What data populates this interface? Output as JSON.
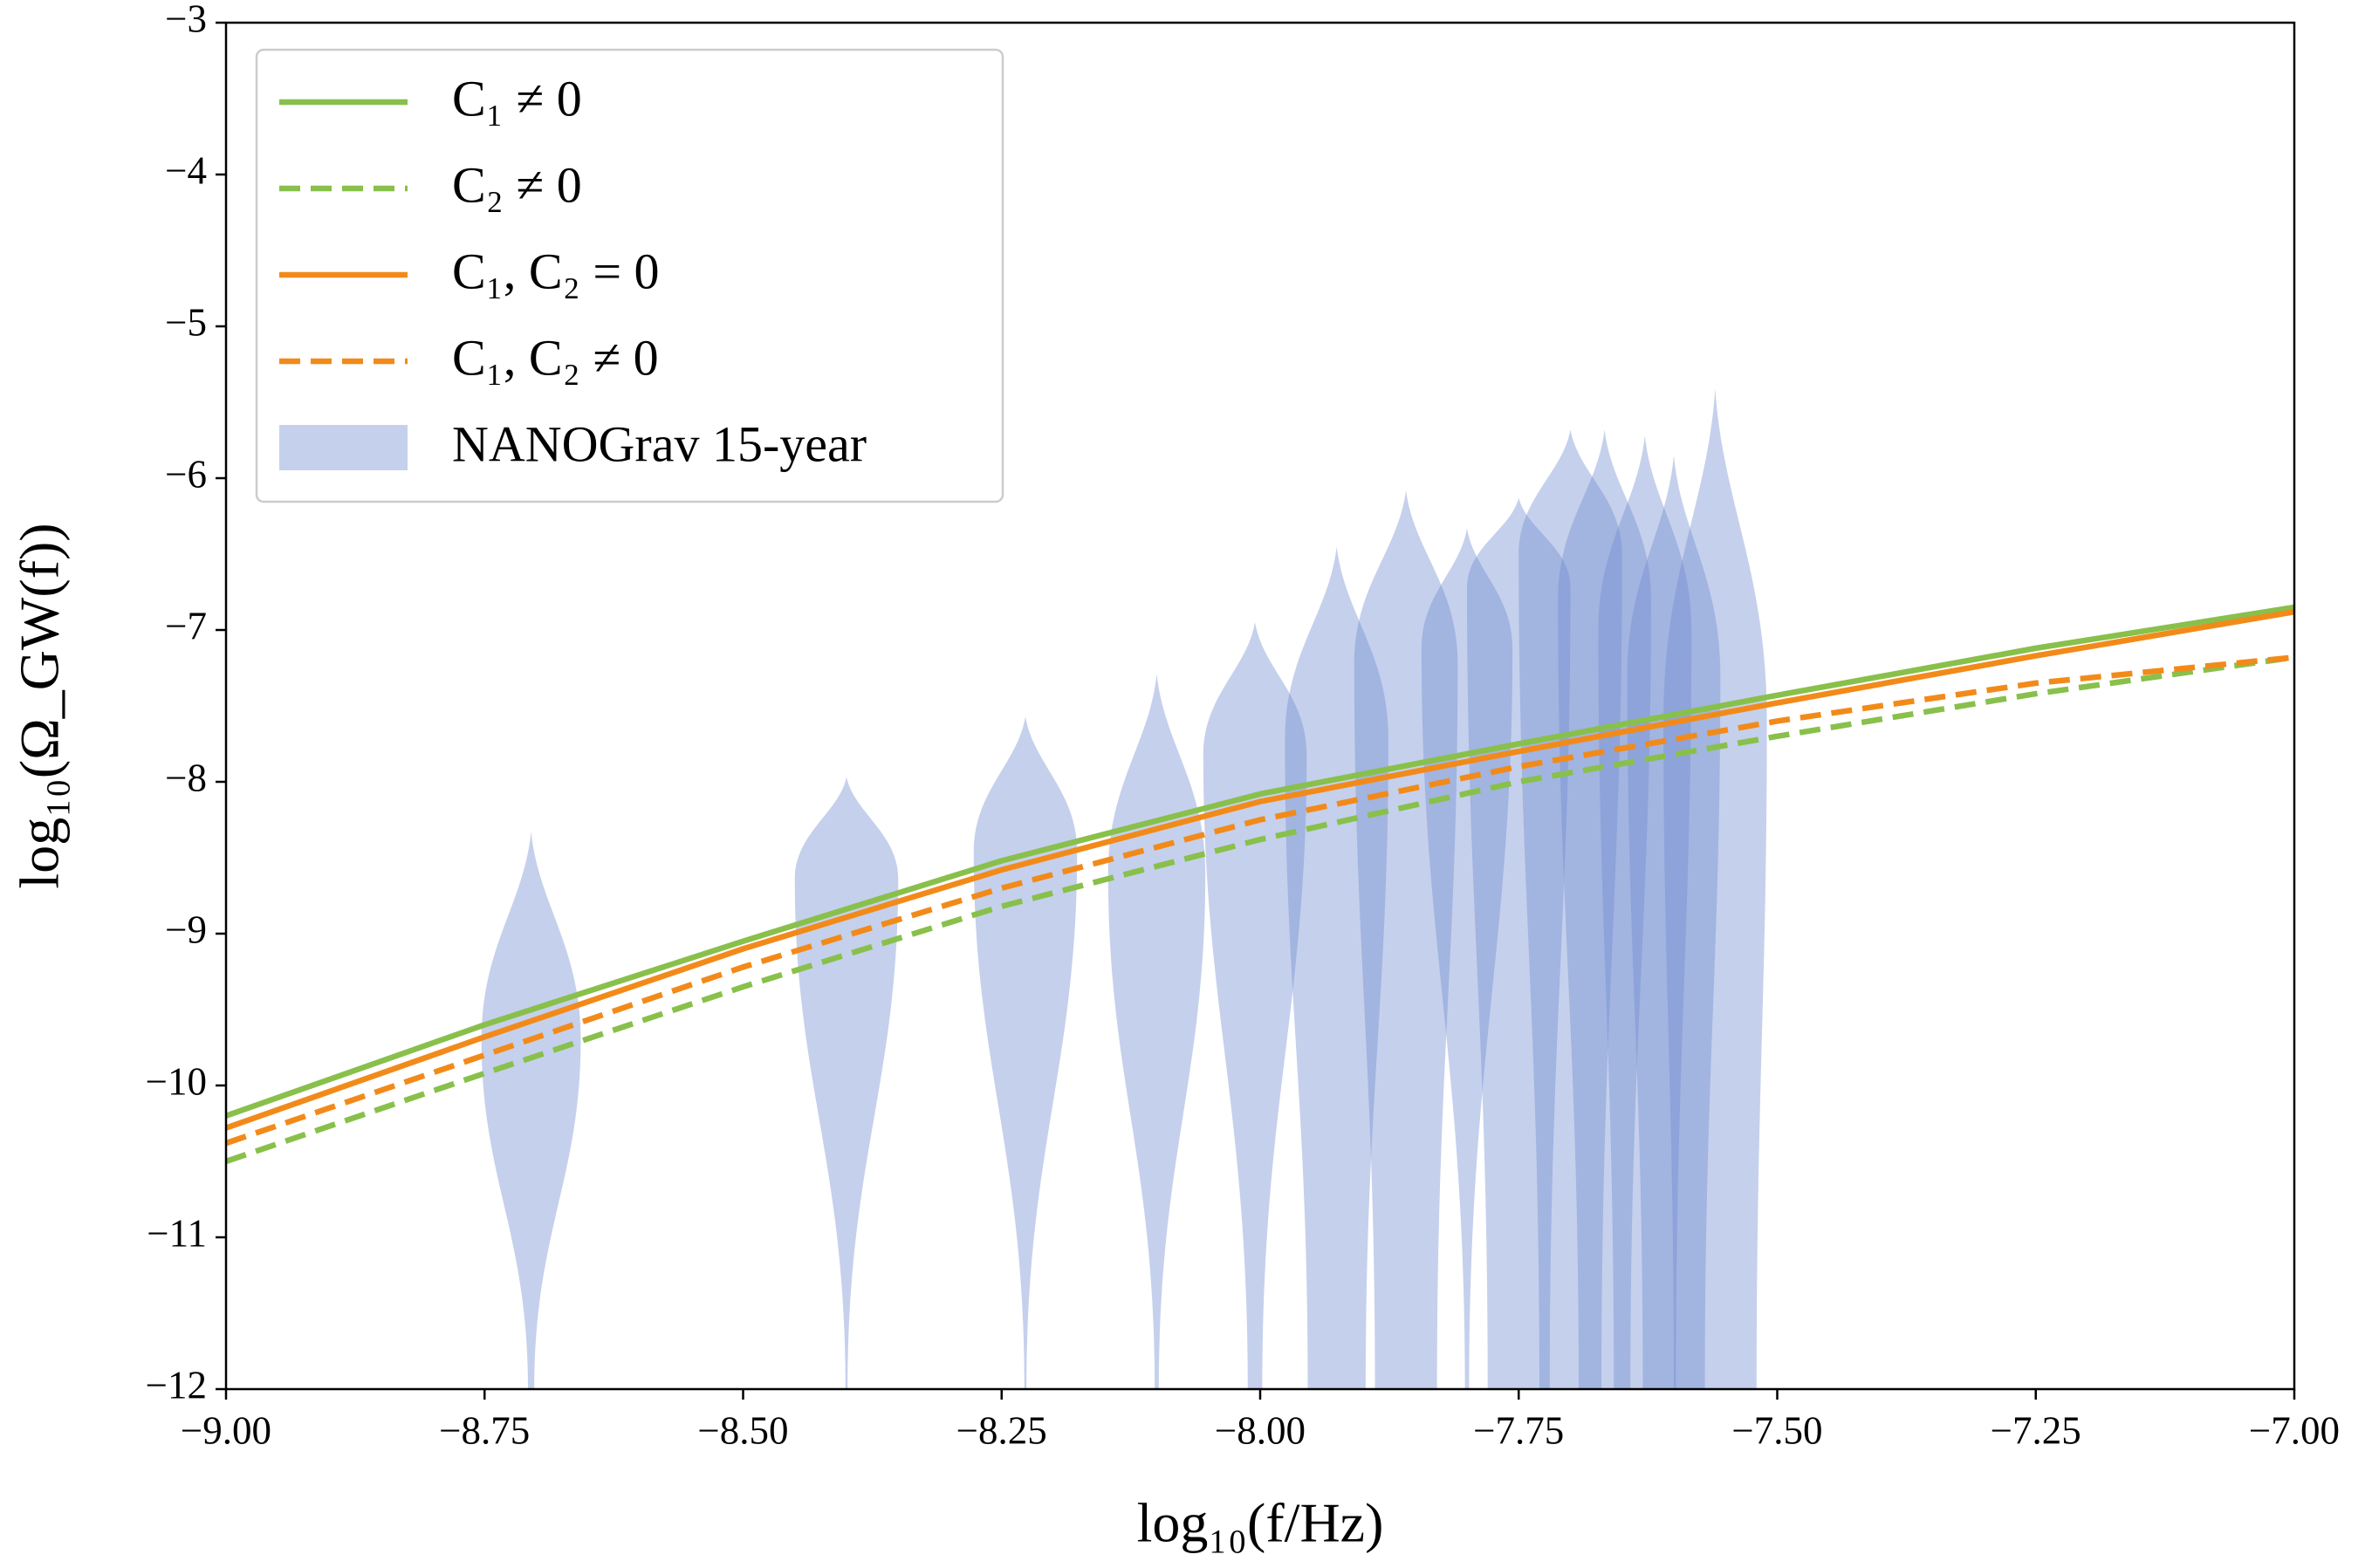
{
  "chart_data": {
    "type": "line",
    "x_label": "log₁₀(f/Hz)",
    "y_label": "log₁₀(Ω_GW(f))",
    "xlim": [
      -9,
      -7
    ],
    "ylim": [
      -12,
      -3
    ],
    "xticks": [
      {
        "value": -9,
        "label": "−9.00"
      },
      {
        "value": -8.75,
        "label": "−8.75"
      },
      {
        "value": -8.5,
        "label": "−8.50"
      },
      {
        "value": -8.25,
        "label": "−8.25"
      },
      {
        "value": -8,
        "label": "−8.00"
      },
      {
        "value": -7.75,
        "label": "−7.75"
      },
      {
        "value": -7.5,
        "label": "−7.50"
      },
      {
        "value": -7.25,
        "label": "−7.25"
      },
      {
        "value": -7,
        "label": "−7.00"
      }
    ],
    "yticks": [
      {
        "value": -3,
        "label": "−3"
      },
      {
        "value": -4,
        "label": "−4"
      },
      {
        "value": -5,
        "label": "−5"
      },
      {
        "value": -6,
        "label": "−6"
      },
      {
        "value": -7,
        "label": "−7"
      },
      {
        "value": -8,
        "label": "−8"
      },
      {
        "value": -9,
        "label": "−9"
      },
      {
        "value": -10,
        "label": "−10"
      },
      {
        "value": -11,
        "label": "−11"
      },
      {
        "value": -12,
        "label": "−12"
      }
    ],
    "legend": "upper left",
    "x": [
      -9,
      -8.75,
      -8.5,
      -8.25,
      -8,
      -7.75,
      -7.5,
      -7.25,
      -7
    ],
    "series": [
      {
        "name": "C₁ ≠ 0",
        "color": "#88c04b",
        "dashed": false,
        "values": [
          -10.2,
          -9.6,
          -9.05,
          -8.52,
          -8.08,
          -7.75,
          -7.43,
          -7.12,
          -6.85
        ]
      },
      {
        "name": "C₂ ≠ 0",
        "color": "#88c04b",
        "dashed": true,
        "values": [
          -10.5,
          -9.92,
          -9.35,
          -8.82,
          -8.38,
          -8.0,
          -7.7,
          -7.42,
          -7.18
        ]
      },
      {
        "name": "C₁, C₂ = 0",
        "color": "#f28a1a",
        "dashed": false,
        "values": [
          -10.28,
          -9.68,
          -9.1,
          -8.58,
          -8.13,
          -7.8,
          -7.48,
          -7.17,
          -6.88
        ]
      },
      {
        "name": "C₁, C₂ ≠ 0",
        "color": "#f28a1a",
        "dashed": true,
        "values": [
          -10.38,
          -9.8,
          -9.22,
          -8.7,
          -8.25,
          -7.9,
          -7.6,
          -7.35,
          -7.18
        ]
      }
    ],
    "violins": {
      "name": "NANOGrav 15-year",
      "color": "#6f89cf",
      "items": [
        {
          "x": -8.705,
          "top": -8.33,
          "peak": -9.7,
          "bottom": -12,
          "width": 0.048,
          "tail": 0.003
        },
        {
          "x": -8.4,
          "top": -7.97,
          "peak": -8.64,
          "bottom": -12,
          "width": 0.05,
          "tail": 0.001
        },
        {
          "x": -8.227,
          "top": -7.57,
          "peak": -8.46,
          "bottom": -12,
          "width": 0.05,
          "tail": 0.001
        },
        {
          "x": -8.1,
          "top": -7.29,
          "peak": -8.6,
          "bottom": -12,
          "width": 0.047,
          "tail": 0.002
        },
        {
          "x": -8.005,
          "top": -6.95,
          "peak": -7.82,
          "bottom": -12,
          "width": 0.05,
          "tail": 0.007
        },
        {
          "x": -7.926,
          "top": -6.45,
          "peak": -7.72,
          "bottom": -12,
          "width": 0.05,
          "tail": 0.028
        },
        {
          "x": -7.859,
          "top": -6.08,
          "peak": -7.22,
          "bottom": -12,
          "width": 0.05,
          "tail": 0.03
        },
        {
          "x": -7.8,
          "top": -6.33,
          "peak": -7.12,
          "bottom": -12,
          "width": 0.044,
          "tail": 0.002
        },
        {
          "x": -7.75,
          "top": -6.13,
          "peak": -6.72,
          "bottom": -12,
          "width": 0.05,
          "tail": 0.03
        },
        {
          "x": -7.7,
          "top": -5.68,
          "peak": -6.5,
          "bottom": -12,
          "width": 0.05,
          "tail": 0.03
        },
        {
          "x": -7.667,
          "top": -5.68,
          "peak": -6.8,
          "bottom": -12,
          "width": 0.045,
          "tail": 0.025
        },
        {
          "x": -7.628,
          "top": -5.72,
          "peak": -7.0,
          "bottom": -12,
          "width": 0.045,
          "tail": 0.03
        },
        {
          "x": -7.6,
          "top": -5.85,
          "peak": -7.3,
          "bottom": -12,
          "width": 0.045,
          "tail": 0.03
        },
        {
          "x": -7.56,
          "top": -5.41,
          "peak": -7.6,
          "bottom": -12,
          "width": 0.05,
          "tail": 0.04
        }
      ]
    }
  }
}
